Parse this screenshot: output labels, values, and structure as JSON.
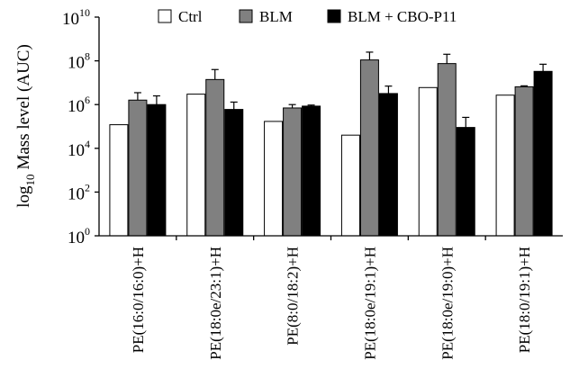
{
  "chart_data": {
    "type": "bar",
    "y_scale": "log10",
    "ylim": [
      1,
      10000000000
    ],
    "ylabel": {
      "prefix": "log",
      "subscript": "10",
      "text": "Mass level (AUC)"
    },
    "y_ticks": [
      {
        "base": "10",
        "exp": "0",
        "value": 1
      },
      {
        "base": "10",
        "exp": "2",
        "value": 100
      },
      {
        "base": "10",
        "exp": "4",
        "value": 10000
      },
      {
        "base": "10",
        "exp": "6",
        "value": 1000000
      },
      {
        "base": "10",
        "exp": "8",
        "value": 100000000
      },
      {
        "base": "10",
        "exp": "10",
        "value": 10000000000
      }
    ],
    "categories": [
      "PE(16:0/16:0)+H",
      "PE(18:0e/23:1)+H",
      "PE(8:0/18:2)+H",
      "PE(18:0e/19:1)+H",
      "PE(18:0e/19:0)+H",
      "PE(18:0/19:1)+H"
    ],
    "series": [
      {
        "name": "Ctrl",
        "color": "#ffffff",
        "values": [
          120000,
          3000000,
          170000,
          40000,
          6000000,
          2700000
        ],
        "error_upper": [
          null,
          null,
          null,
          null,
          null,
          null
        ]
      },
      {
        "name": "BLM",
        "color": "#808080",
        "values": [
          1600000,
          14000000,
          700000,
          110000000,
          75000000,
          6500000
        ],
        "error_upper": [
          3500000,
          40000000,
          1000000,
          250000000,
          200000000,
          7200000
        ]
      },
      {
        "name": "BLM + CBO-P11",
        "color": "#000000",
        "values": [
          1000000,
          600000,
          850000,
          3200000,
          90000,
          33000000
        ],
        "error_upper": [
          2500000,
          1300000,
          950000,
          7000000,
          260000,
          70000000
        ]
      }
    ],
    "legend": "top",
    "grid": false
  }
}
